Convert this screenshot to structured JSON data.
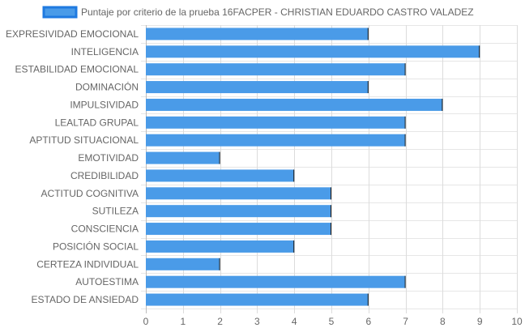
{
  "chart_data": {
    "type": "bar",
    "orientation": "horizontal",
    "categories": [
      "EXPRESIVIDAD EMOCIONAL",
      "INTELIGENCIA",
      "ESTABILIDAD EMOCIONAL",
      "DOMINACIÓN",
      "IMPULSIVIDAD",
      "LEALTAD GRUPAL",
      "APTITUD SITUACIONAL",
      "EMOTIVIDAD",
      "CREDIBILIDAD",
      "ACTITUD COGNITIVA",
      "SUTILEZA",
      "CONSCIENCIA",
      "POSICIÓN SOCIAL",
      "CERTEZA INDIVIDUAL",
      "AUTOESTIMA",
      "ESTADO DE ANSIEDAD"
    ],
    "series": [
      {
        "name": "Puntaje por criterio de la prueba 16FACPER - CHRISTIAN EDUARDO CASTRO VALADEZ",
        "values": [
          6,
          9,
          7,
          6,
          8,
          7,
          7,
          2,
          4,
          5,
          5,
          5,
          4,
          2,
          7,
          6
        ],
        "color": "#4a9be8",
        "border_color": "#1f7ae0"
      }
    ],
    "xlim": [
      0,
      10
    ],
    "xticks": [
      "0",
      "1",
      "2",
      "3",
      "4",
      "5",
      "6",
      "7",
      "8",
      "9",
      "10"
    ],
    "grid": true,
    "legend_position": "top"
  }
}
